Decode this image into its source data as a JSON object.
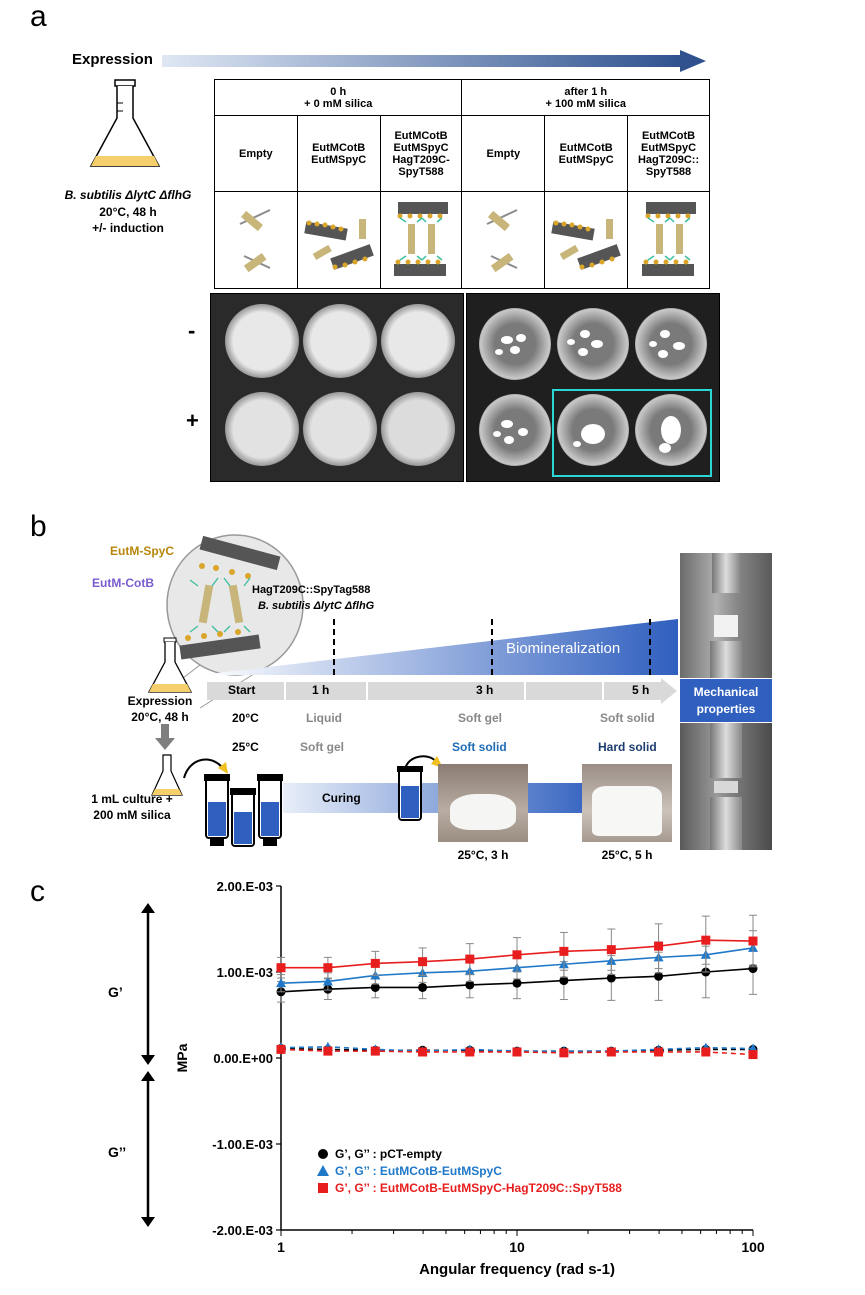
{
  "panel_a": {
    "letter": "a",
    "expression_label": "Expression",
    "strain_label": "B. subtilis ΔlytC ΔflhG",
    "conditions": [
      "20°C, 48 h",
      "+/- induction"
    ],
    "group1_header": [
      "0 h",
      "+ 0 mM silica"
    ],
    "group2_header": [
      "after 1 h",
      "+ 100 mM silica"
    ],
    "columns": [
      [
        "Empty"
      ],
      [
        "EutMCotB",
        "EutMSpyC"
      ],
      [
        "EutMCotB",
        "EutMSpyC",
        "HagT209C-",
        "SpyT588"
      ],
      [
        "Empty"
      ],
      [
        "EutMCotB",
        "EutMSpyC"
      ],
      [
        "EutMCotB",
        "EutMSpyC",
        "HagT209C::",
        "SpyT588"
      ]
    ],
    "row_minus": "-",
    "row_plus": "+"
  },
  "panel_b": {
    "letter": "b",
    "eutm_spyc": "EutM-SpyC",
    "eutm_cotb": "EutM-CotB",
    "hag_spytag": "HagT209C::SpyTag588",
    "strain": "B. subtilis ΔlytC ΔflhG",
    "biomineralization": "Biomineralization",
    "expression": "Expression",
    "expression_cond": "20°C, 48 h",
    "timeline": [
      "Start",
      "1 h",
      "3 h",
      "5 h"
    ],
    "row20": {
      "temp": "20°C",
      "t1": "Liquid",
      "t3": "Soft gel",
      "t5": "Soft solid"
    },
    "row25": {
      "temp": "25°C",
      "t1": "Soft gel",
      "t3": "Soft solid",
      "t5": "Hard solid"
    },
    "mechanical": [
      "Mechanical",
      "properties"
    ],
    "culture": [
      "1 mL culture +",
      "200 mM silica"
    ],
    "curing": "Curing",
    "photo1_caption": "25°C, 3 h",
    "photo2_caption": "25°C, 5 h"
  },
  "panel_c": {
    "letter": "c",
    "g_prime": "G’",
    "g_dprime": "G’’"
  },
  "chart_data": {
    "type": "line",
    "xlabel": "Angular frequency (rad s-1)",
    "ylabel": "MPa",
    "xscale": "log",
    "xlim": [
      1,
      100
    ],
    "ylim": [
      -0.002,
      0.002
    ],
    "x_ticks": [
      "1",
      "10",
      "100"
    ],
    "y_ticks": [
      "2.00.E-03",
      "1.00.E-03",
      "0.00.E+00",
      "-1.00.E-03",
      "-2.00.E-03"
    ],
    "x": [
      1,
      1.58,
      2.51,
      3.98,
      6.31,
      10,
      15.8,
      25.1,
      39.8,
      63.1,
      100
    ],
    "series": [
      {
        "name": "G’, G’’ : pCT-empty",
        "color": "#000000",
        "marker": "circle",
        "g_prime": [
          0.00077,
          0.0008,
          0.00082,
          0.00082,
          0.00085,
          0.00087,
          0.0009,
          0.00093,
          0.00095,
          0.001,
          0.00104
        ],
        "g_prime_err": [
          0.00012,
          0.00012,
          0.00012,
          0.00013,
          0.00015,
          0.00018,
          0.00022,
          0.00026,
          0.00028,
          0.0003,
          0.0003
        ],
        "g_dprime": [
          0.00011,
          0.0001,
          9e-05,
          9e-05,
          9e-05,
          8e-05,
          8e-05,
          8e-05,
          9e-05,
          0.0001,
          0.0001
        ]
      },
      {
        "name": "G’, G’’ : EutMCotB-EutMSpyC",
        "color": "#1f78c8",
        "marker": "triangle",
        "g_prime": [
          0.00087,
          0.00089,
          0.00096,
          0.00099,
          0.00101,
          0.00105,
          0.00109,
          0.00113,
          0.00117,
          0.0012,
          0.00128
        ],
        "g_prime_err": [
          0.0001,
          0.0001,
          0.0001,
          0.00011,
          0.00012,
          0.00013,
          0.00015,
          0.00016,
          0.00018,
          0.0002,
          0.0002
        ],
        "g_dprime": [
          0.00012,
          0.00013,
          0.0001,
          8e-05,
          0.0001,
          8e-05,
          8e-05,
          8e-05,
          0.0001,
          0.00012,
          0.00011
        ]
      },
      {
        "name": "G’, G’’ : EutMCotB-EutMSpyC-HagT209C::SpyT588",
        "color": "#e81e1e",
        "marker": "square",
        "g_prime": [
          0.00105,
          0.00105,
          0.0011,
          0.00112,
          0.00115,
          0.0012,
          0.00124,
          0.00126,
          0.0013,
          0.00137,
          0.00136
        ],
        "g_prime_err": [
          0.00012,
          0.00012,
          0.00014,
          0.00016,
          0.00018,
          0.0002,
          0.00022,
          0.00024,
          0.00026,
          0.00028,
          0.0003
        ],
        "g_dprime": [
          0.0001,
          8e-05,
          8e-05,
          7e-05,
          7e-05,
          7e-05,
          6e-05,
          7e-05,
          7e-05,
          7e-05,
          4e-05
        ]
      }
    ]
  }
}
